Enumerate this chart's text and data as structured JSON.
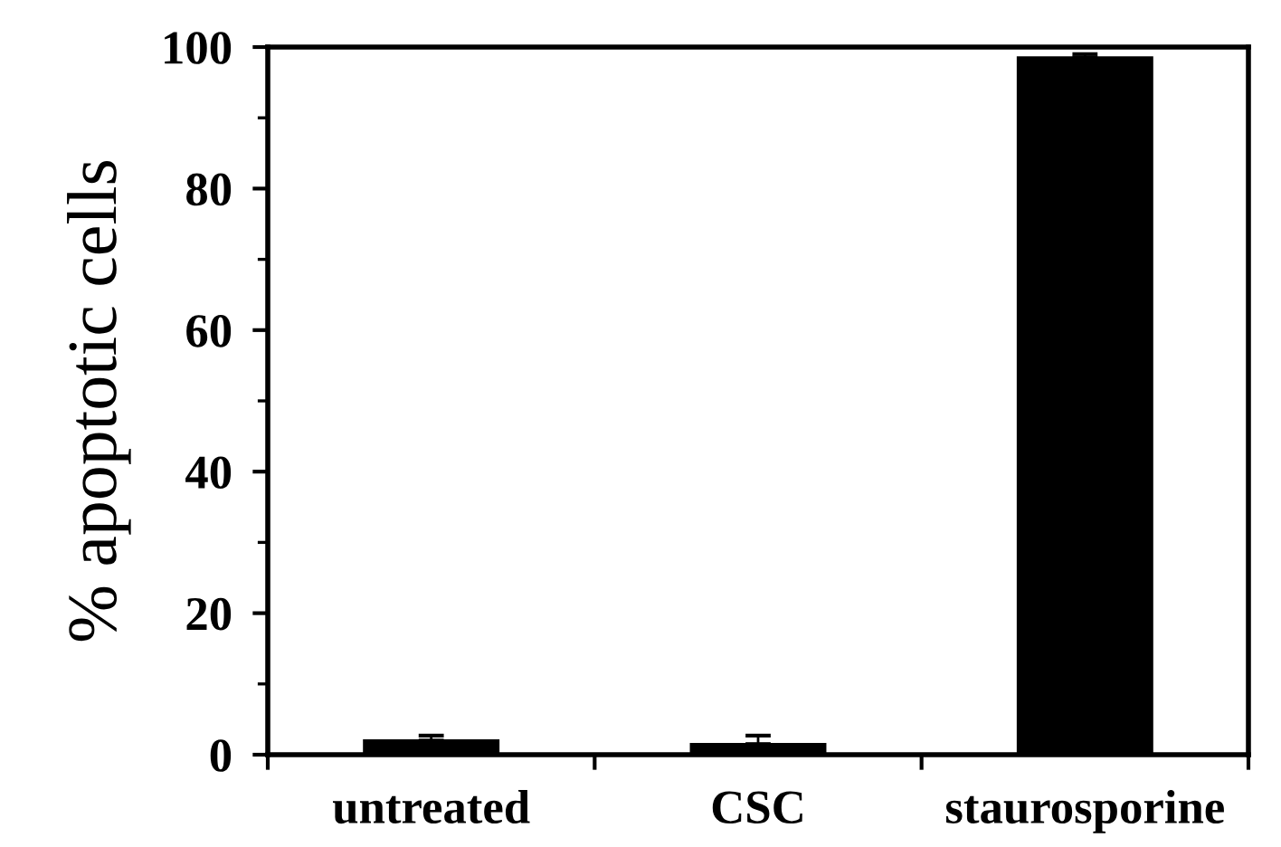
{
  "chart_data": {
    "type": "bar",
    "ylabel": "% apoptotic cells",
    "categories": [
      "untreated",
      "CSC",
      "staurosporine"
    ],
    "values": [
      2,
      1.5,
      98.5
    ],
    "errors": [
      [
        2,
        2.7
      ],
      [
        1.5,
        2.7
      ],
      [
        98.5,
        99
      ]
    ],
    "color": "#000000",
    "ylim": [
      0,
      100
    ],
    "yticks": [
      0,
      20,
      40,
      60,
      80,
      100
    ],
    "grid": false,
    "legend": false
  }
}
